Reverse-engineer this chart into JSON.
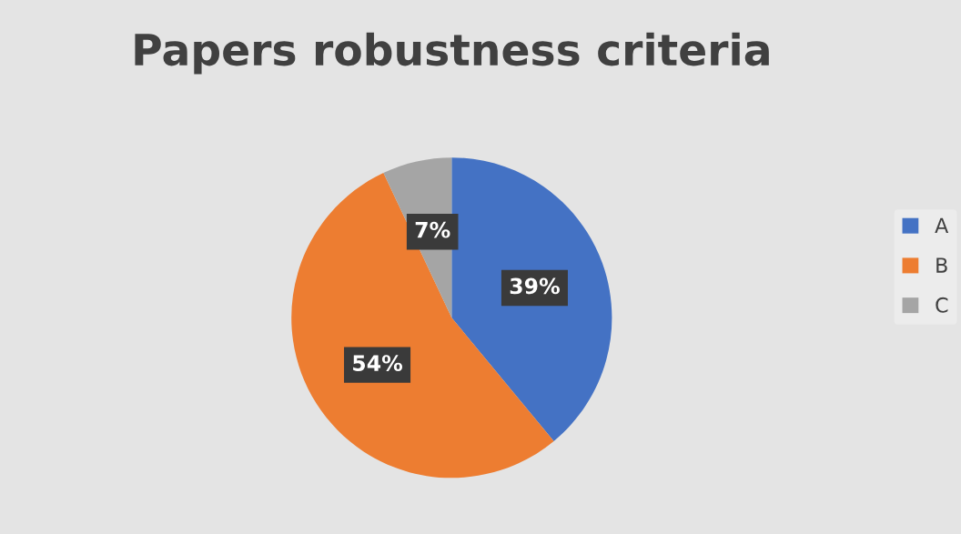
{
  "chart_data": {
    "type": "pie",
    "title": "Papers robustness criteria",
    "categories": [
      "A",
      "B",
      "C"
    ],
    "values": [
      39,
      54,
      7
    ],
    "colors": [
      "#4472c4",
      "#ed7d31",
      "#a5a5a5"
    ],
    "value_labels": [
      "39%",
      "54%",
      "7%"
    ],
    "legend": "right"
  }
}
